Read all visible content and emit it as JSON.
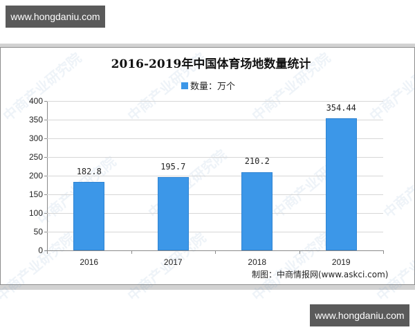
{
  "watermark_badges": {
    "top": "www.hongdaniu.com",
    "bottom": "www.hongdaniu.com"
  },
  "background_watermark_text": "中商产业研究院",
  "chart_data": {
    "type": "bar",
    "title": "2016-2019年中国体育场地数量统计",
    "categories": [
      "2016",
      "2017",
      "2018",
      "2019"
    ],
    "series": [
      {
        "name": "数量：万个",
        "values": [
          182.8,
          195.7,
          210.2,
          354.44
        ],
        "color": "#3c97e8"
      }
    ],
    "value_labels": [
      "182.8",
      "195.7",
      "210.2",
      "354.44"
    ],
    "xlabel": "",
    "ylabel": "",
    "ylim": [
      0,
      400
    ],
    "yticks": [
      0,
      50,
      100,
      150,
      200,
      250,
      300,
      350,
      400
    ],
    "grid": true,
    "legend_position": "top",
    "source": "制图：中商情报网(www.askci.com)"
  }
}
